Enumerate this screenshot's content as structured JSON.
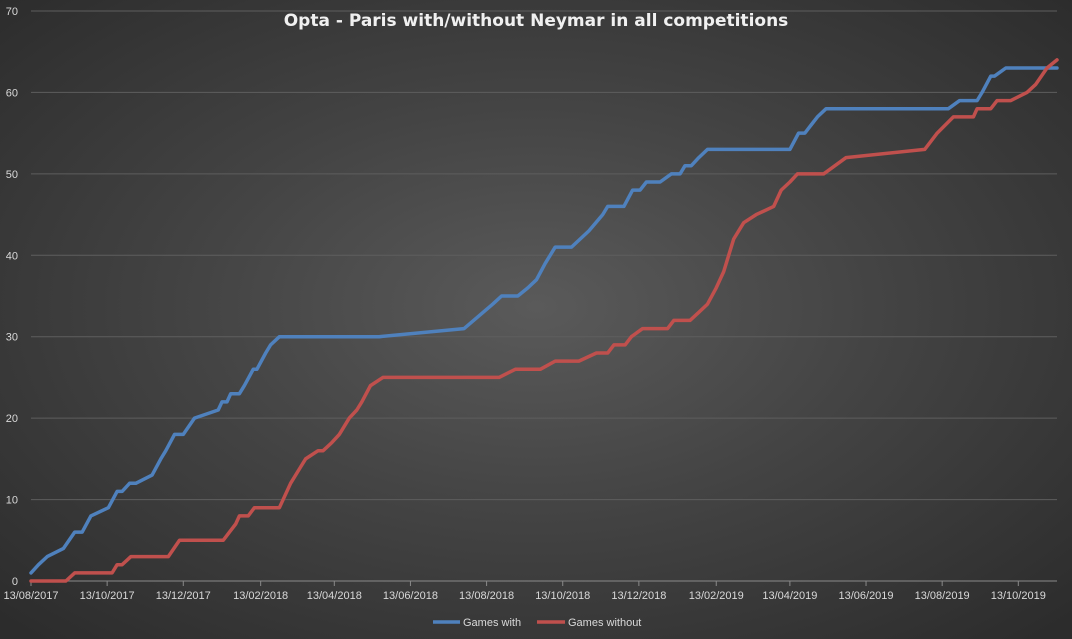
{
  "chart_data": {
    "type": "line",
    "title": "Opta - Paris with/without Neymar in all competitions",
    "xlabel": "",
    "ylabel": "",
    "ylim": [
      0,
      70
    ],
    "y_ticks": [
      0,
      10,
      20,
      30,
      40,
      50,
      60,
      70
    ],
    "x_range": [
      "2017-08-13",
      "2019-11-13"
    ],
    "x_ticks": [
      "13/08/2017",
      "13/10/2017",
      "13/12/2017",
      "13/02/2018",
      "13/04/2018",
      "13/06/2018",
      "13/08/2018",
      "13/10/2018",
      "13/12/2018",
      "13/02/2019",
      "13/04/2019",
      "13/06/2019",
      "13/08/2019",
      "13/10/2019"
    ],
    "grid": true,
    "legend_position": "bottom",
    "colors": {
      "Games with": "#4f81bd",
      "Games without": "#c0504d"
    },
    "series": [
      {
        "name": "Games with",
        "color": "#4f81bd",
        "points": [
          [
            "2017-08-13",
            1
          ],
          [
            "2017-08-19",
            2
          ],
          [
            "2017-08-26",
            3
          ],
          [
            "2017-09-08",
            4
          ],
          [
            "2017-09-17",
            6
          ],
          [
            "2017-09-23",
            6
          ],
          [
            "2017-09-30",
            8
          ],
          [
            "2017-10-14",
            9
          ],
          [
            "2017-10-21",
            11
          ],
          [
            "2017-10-25",
            11
          ],
          [
            "2017-10-31",
            12
          ],
          [
            "2017-11-05",
            12
          ],
          [
            "2017-11-18",
            13
          ],
          [
            "2017-11-25",
            15
          ],
          [
            "2017-11-29",
            16
          ],
          [
            "2017-12-06",
            18
          ],
          [
            "2017-12-13",
            18
          ],
          [
            "2017-12-22",
            20
          ],
          [
            "2018-01-10",
            21
          ],
          [
            "2018-01-13",
            22
          ],
          [
            "2018-01-17",
            22
          ],
          [
            "2018-01-20",
            23
          ],
          [
            "2018-01-27",
            23
          ],
          [
            "2018-01-31",
            24
          ],
          [
            "2018-02-07",
            26
          ],
          [
            "2018-02-10",
            26
          ],
          [
            "2018-02-17",
            28
          ],
          [
            "2018-02-21",
            29
          ],
          [
            "2018-02-28",
            30
          ],
          [
            "2018-05-19",
            30
          ],
          [
            "2018-07-26",
            31
          ],
          [
            "2018-08-18",
            34
          ],
          [
            "2018-08-25",
            35
          ],
          [
            "2018-09-07",
            35
          ],
          [
            "2018-09-15",
            36
          ],
          [
            "2018-09-22",
            37
          ],
          [
            "2018-09-29",
            39
          ],
          [
            "2018-10-07",
            41
          ],
          [
            "2018-10-20",
            41
          ],
          [
            "2018-10-27",
            42
          ],
          [
            "2018-11-03",
            43
          ],
          [
            "2018-11-14",
            45
          ],
          [
            "2018-11-18",
            46
          ],
          [
            "2018-12-01",
            46
          ],
          [
            "2018-12-08",
            48
          ],
          [
            "2018-12-14",
            48
          ],
          [
            "2018-12-19",
            49
          ],
          [
            "2018-12-30",
            49
          ],
          [
            "2019-01-08",
            50
          ],
          [
            "2019-01-15",
            50
          ],
          [
            "2019-01-19",
            51
          ],
          [
            "2019-01-24",
            51
          ],
          [
            "2019-01-30",
            52
          ],
          [
            "2019-02-06",
            53
          ],
          [
            "2019-04-13",
            53
          ],
          [
            "2019-04-20",
            55
          ],
          [
            "2019-04-25",
            55
          ],
          [
            "2019-04-30",
            56
          ],
          [
            "2019-05-05",
            57
          ],
          [
            "2019-05-12",
            58
          ],
          [
            "2019-08-08",
            58
          ],
          [
            "2019-08-18",
            58
          ],
          [
            "2019-08-27",
            59
          ],
          [
            "2019-09-03",
            59
          ],
          [
            "2019-09-10",
            59
          ],
          [
            "2019-09-14",
            60
          ],
          [
            "2019-09-21",
            62
          ],
          [
            "2019-09-24",
            62
          ],
          [
            "2019-10-03",
            63
          ],
          [
            "2019-11-13",
            63
          ]
        ]
      },
      {
        "name": "Games without",
        "color": "#c0504d",
        "points": [
          [
            "2017-08-13",
            0
          ],
          [
            "2017-09-10",
            0
          ],
          [
            "2017-09-17",
            1
          ],
          [
            "2017-10-10",
            1
          ],
          [
            "2017-10-17",
            1
          ],
          [
            "2017-10-21",
            2
          ],
          [
            "2017-10-25",
            2
          ],
          [
            "2017-11-01",
            3
          ],
          [
            "2017-12-01",
            3
          ],
          [
            "2017-12-10",
            5
          ],
          [
            "2018-01-14",
            5
          ],
          [
            "2018-01-19",
            6
          ],
          [
            "2018-01-24",
            7
          ],
          [
            "2018-01-27",
            8
          ],
          [
            "2018-02-03",
            8
          ],
          [
            "2018-02-08",
            9
          ],
          [
            "2018-02-28",
            9
          ],
          [
            "2018-03-09",
            12
          ],
          [
            "2018-03-17",
            14
          ],
          [
            "2018-03-21",
            15
          ],
          [
            "2018-03-31",
            16
          ],
          [
            "2018-04-04",
            16
          ],
          [
            "2018-04-11",
            17
          ],
          [
            "2018-04-17",
            18
          ],
          [
            "2018-04-25",
            20
          ],
          [
            "2018-05-01",
            21
          ],
          [
            "2018-05-05",
            22
          ],
          [
            "2018-05-12",
            24
          ],
          [
            "2018-05-22",
            25
          ],
          [
            "2018-08-23",
            25
          ],
          [
            "2018-09-05",
            26
          ],
          [
            "2018-09-25",
            26
          ],
          [
            "2018-10-07",
            27
          ],
          [
            "2018-10-26",
            27
          ],
          [
            "2018-11-09",
            28
          ],
          [
            "2018-11-18",
            28
          ],
          [
            "2018-11-23",
            29
          ],
          [
            "2018-12-02",
            29
          ],
          [
            "2018-12-07",
            30
          ],
          [
            "2018-12-16",
            31
          ],
          [
            "2018-12-26",
            31
          ],
          [
            "2019-01-05",
            31
          ],
          [
            "2019-01-10",
            32
          ],
          [
            "2019-01-23",
            32
          ],
          [
            "2019-01-30",
            33
          ],
          [
            "2019-02-06",
            34
          ],
          [
            "2019-02-13",
            36
          ],
          [
            "2019-02-19",
            38
          ],
          [
            "2019-02-27",
            42
          ],
          [
            "2019-03-07",
            44
          ],
          [
            "2019-03-17",
            45
          ],
          [
            "2019-03-31",
            46
          ],
          [
            "2019-04-06",
            48
          ],
          [
            "2019-04-13",
            49
          ],
          [
            "2019-04-19",
            50
          ],
          [
            "2019-05-10",
            50
          ],
          [
            "2019-05-28",
            52
          ],
          [
            "2019-07-30",
            53
          ],
          [
            "2019-08-09",
            55
          ],
          [
            "2019-08-22",
            57
          ],
          [
            "2019-08-27",
            57
          ],
          [
            "2019-09-07",
            57
          ],
          [
            "2019-09-10",
            58
          ],
          [
            "2019-09-21",
            58
          ],
          [
            "2019-09-26",
            59
          ],
          [
            "2019-10-07",
            59
          ],
          [
            "2019-10-20",
            60
          ],
          [
            "2019-10-27",
            61
          ],
          [
            "2019-11-05",
            63
          ],
          [
            "2019-11-13",
            64
          ]
        ]
      }
    ]
  }
}
